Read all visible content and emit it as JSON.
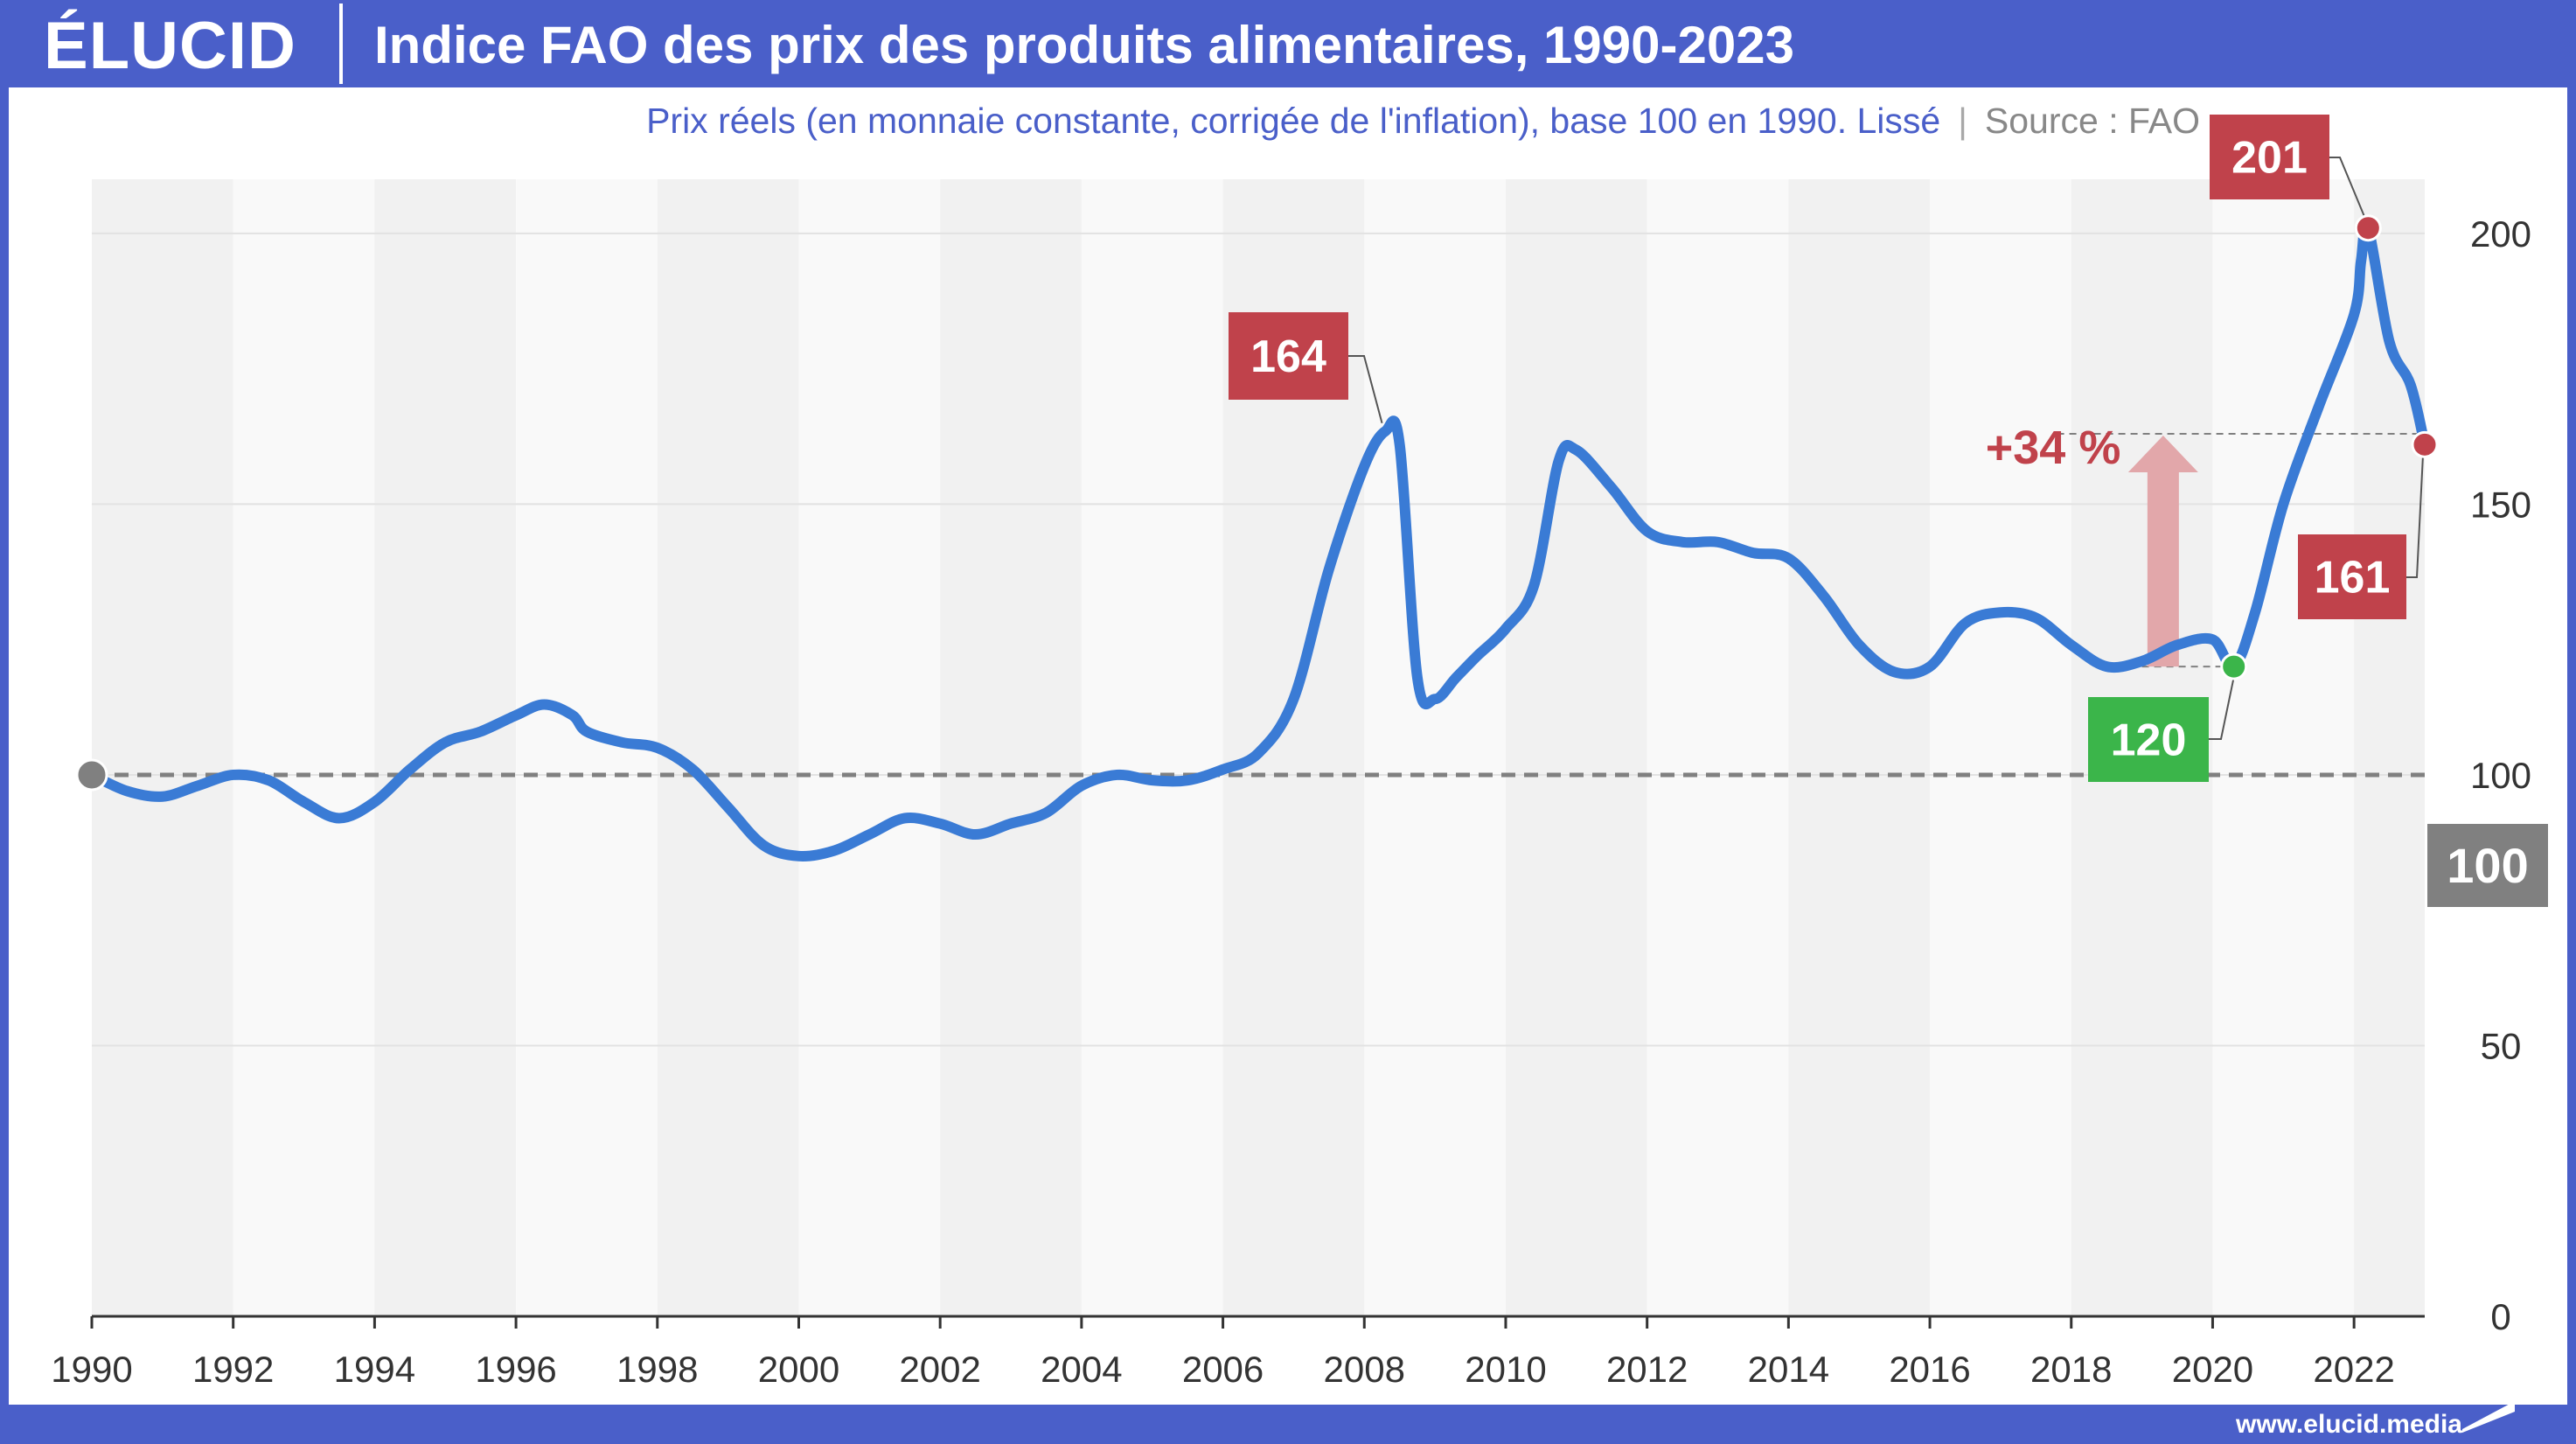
{
  "header": {
    "logo": "ÉLUCID",
    "title": "Indice FAO des prix des produits alimentaires, 1990-2023"
  },
  "subtitle": {
    "text": "Prix réels (en monnaie constante, corrigée de l'inflation), base 100 en 1990. Lissé",
    "separator": "|",
    "source": "Source : FAO"
  },
  "footer": {
    "url": "www.elucid.media"
  },
  "colors": {
    "brand": "#4a5fc9",
    "line": "#3a7bd5",
    "peak": "#c0424b",
    "trough": "#3bb54a",
    "base": "#808080",
    "arrow": "#e2a7aa"
  },
  "chart_data": {
    "type": "line",
    "xlim": [
      1990,
      2023
    ],
    "ylim": [
      0,
      210
    ],
    "x_ticks": [
      "1990",
      "1992",
      "1994",
      "1996",
      "1998",
      "2000",
      "2002",
      "2004",
      "2006",
      "2008",
      "2010",
      "2012",
      "2014",
      "2016",
      "2018",
      "2020",
      "2022"
    ],
    "y_ticks": [
      "0",
      "50",
      "100",
      "150",
      "200"
    ],
    "grid": true,
    "reference_line": 100,
    "series": [
      {
        "values": [
          [
            1990,
            100
          ],
          [
            1990.5,
            97
          ],
          [
            1991,
            96
          ],
          [
            1991.5,
            98
          ],
          [
            1992,
            100
          ],
          [
            1992.5,
            99
          ],
          [
            1993,
            95
          ],
          [
            1993.5,
            92
          ],
          [
            1994,
            95
          ],
          [
            1994.5,
            101
          ],
          [
            1995,
            106
          ],
          [
            1995.5,
            108
          ],
          [
            1996,
            111
          ],
          [
            1996.4,
            113
          ],
          [
            1996.8,
            111
          ],
          [
            1997,
            108
          ],
          [
            1997.5,
            106
          ],
          [
            1998,
            105
          ],
          [
            1998.5,
            101
          ],
          [
            1999,
            94
          ],
          [
            1999.5,
            87
          ],
          [
            2000,
            85
          ],
          [
            2000.5,
            86
          ],
          [
            2001,
            89
          ],
          [
            2001.5,
            92
          ],
          [
            2002,
            91
          ],
          [
            2002.5,
            89
          ],
          [
            2003,
            91
          ],
          [
            2003.5,
            93
          ],
          [
            2004,
            98
          ],
          [
            2004.5,
            100
          ],
          [
            2005,
            99
          ],
          [
            2005.5,
            99
          ],
          [
            2006,
            101
          ],
          [
            2006.5,
            104
          ],
          [
            2007,
            114
          ],
          [
            2007.5,
            138
          ],
          [
            2008,
            157
          ],
          [
            2008.3,
            163.5
          ],
          [
            2008.5,
            161
          ],
          [
            2008.75,
            118
          ],
          [
            2009,
            114
          ],
          [
            2009.3,
            118
          ],
          [
            2009.6,
            122
          ],
          [
            2010,
            127
          ],
          [
            2010.4,
            135
          ],
          [
            2010.75,
            158
          ],
          [
            2011,
            160
          ],
          [
            2011.5,
            153
          ],
          [
            2012,
            145
          ],
          [
            2012.5,
            143
          ],
          [
            2013,
            143
          ],
          [
            2013.5,
            141
          ],
          [
            2014,
            140
          ],
          [
            2014.5,
            133
          ],
          [
            2015,
            124
          ],
          [
            2015.5,
            119
          ],
          [
            2016,
            120
          ],
          [
            2016.5,
            128
          ],
          [
            2017,
            130
          ],
          [
            2017.5,
            129
          ],
          [
            2018,
            124
          ],
          [
            2018.5,
            120
          ],
          [
            2019,
            121
          ],
          [
            2019.5,
            124
          ],
          [
            2020,
            125
          ],
          [
            2020.3,
            120
          ],
          [
            2020.6,
            130
          ],
          [
            2021,
            150
          ],
          [
            2021.5,
            168
          ],
          [
            2022,
            185
          ],
          [
            2022.1,
            195
          ],
          [
            2022.2,
            201
          ],
          [
            2022.5,
            180
          ],
          [
            2022.8,
            172
          ],
          [
            2023,
            161
          ]
        ]
      }
    ],
    "annotations": {
      "start": {
        "x": 1990,
        "y": 100
      },
      "peak_2008": {
        "x": 2008.3,
        "y": 164,
        "label": "164"
      },
      "trough_2020": {
        "x": 2020.3,
        "y": 120,
        "label": "120"
      },
      "peak_2022": {
        "x": 2022.2,
        "y": 201,
        "label": "201"
      },
      "end_2023": {
        "x": 2023,
        "y": 161,
        "label": "161"
      },
      "change": {
        "label": "+34 %",
        "from_y": 120,
        "to_y": 163
      },
      "base_badge": {
        "label": "100"
      }
    }
  }
}
